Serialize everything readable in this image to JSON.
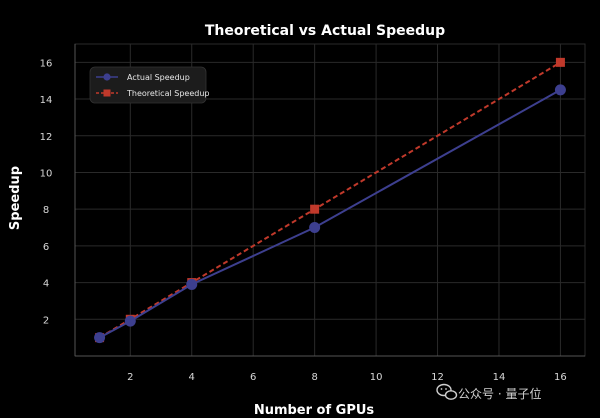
{
  "chart_data": {
    "type": "line",
    "title": "Theoretical vs Actual Speedup",
    "xlabel": "Number of GPUs",
    "ylabel": "Speedup",
    "xlim": [
      0.2,
      16.8
    ],
    "ylim": [
      0.0,
      17.0
    ],
    "x_ticks": [
      2,
      4,
      6,
      8,
      10,
      12,
      14,
      16
    ],
    "y_ticks": [
      2,
      4,
      6,
      8,
      10,
      12,
      14,
      16
    ],
    "grid": true,
    "legend_position": "top-left",
    "series": [
      {
        "name": "Actual Speedup",
        "marker": "circle",
        "line_style": "solid",
        "color": "#3d3f8f",
        "x": [
          1,
          2,
          4,
          8,
          16
        ],
        "y": [
          1.0,
          1.9,
          3.9,
          7.0,
          14.5
        ]
      },
      {
        "name": "Theoretical Speedup",
        "marker": "square",
        "line_style": "dashed",
        "color": "#c0392b",
        "x": [
          1,
          2,
          4,
          8,
          16
        ],
        "y": [
          1,
          2,
          4,
          8,
          16
        ]
      }
    ]
  },
  "colors": {
    "background": "#000000",
    "grid": "#2a2a2a",
    "text": "#ffffff"
  },
  "watermark": {
    "text": "公众号 · 量子位",
    "icon": "wechat-icon"
  }
}
